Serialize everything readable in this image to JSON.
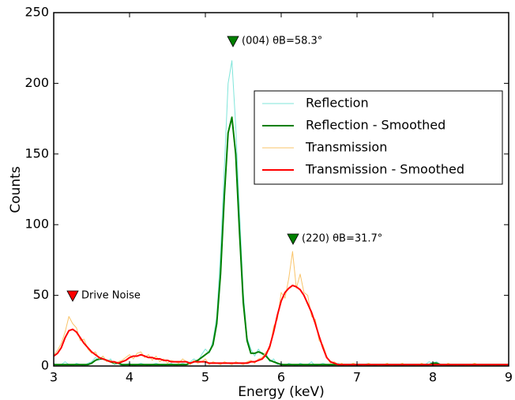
{
  "chart_data": {
    "type": "line",
    "x_label": "Energy (keV)",
    "y_label": "Counts",
    "x": [
      3.0,
      3.05,
      3.1,
      3.15,
      3.2,
      3.25,
      3.3,
      3.35,
      3.4,
      3.45,
      3.5,
      3.55,
      3.6,
      3.65,
      3.7,
      3.75,
      3.8,
      3.85,
      3.9,
      3.95,
      4.0,
      4.05,
      4.1,
      4.15,
      4.2,
      4.25,
      4.3,
      4.35,
      4.4,
      4.45,
      4.5,
      4.55,
      4.6,
      4.65,
      4.7,
      4.75,
      4.8,
      4.85,
      4.9,
      4.95,
      5.0,
      5.05,
      5.1,
      5.15,
      5.2,
      5.25,
      5.3,
      5.35,
      5.4,
      5.45,
      5.5,
      5.55,
      5.6,
      5.65,
      5.7,
      5.75,
      5.8,
      5.85,
      5.9,
      5.95,
      6.0,
      6.05,
      6.1,
      6.15,
      6.2,
      6.25,
      6.3,
      6.35,
      6.4,
      6.45,
      6.5,
      6.55,
      6.6,
      6.65,
      6.7,
      6.75,
      6.8,
      6.85,
      6.9,
      6.95,
      7.0,
      7.05,
      7.1,
      7.15,
      7.2,
      7.25,
      7.3,
      7.35,
      7.4,
      7.45,
      7.5,
      7.55,
      7.6,
      7.65,
      7.7,
      7.75,
      7.8,
      7.85,
      7.9,
      7.95,
      8.0,
      8.05,
      8.1,
      8.15,
      8.2,
      8.25,
      8.3,
      8.35,
      8.4,
      8.45,
      8.5,
      8.55,
      8.6,
      8.65,
      8.7,
      8.75,
      8.8,
      8.85,
      8.9,
      8.95,
      9.0
    ],
    "series": [
      {
        "name": "Reflection",
        "color": "#7fe5da",
        "width": 1,
        "values": [
          2,
          0,
          1,
          3,
          1,
          0,
          2,
          1,
          0,
          2,
          3,
          6,
          4,
          7,
          3,
          5,
          1,
          2,
          0,
          1,
          2,
          0,
          1,
          2,
          1,
          0,
          1,
          2,
          1,
          0,
          1,
          2,
          0,
          1,
          2,
          1,
          3,
          5,
          3,
          8,
          12,
          9,
          18,
          35,
          80,
          140,
          200,
          216,
          170,
          110,
          52,
          20,
          12,
          7,
          12,
          8,
          9,
          3,
          5,
          1,
          2,
          0,
          2,
          1,
          0,
          2,
          1,
          1,
          3,
          0,
          1,
          2,
          1,
          0,
          1,
          2,
          1,
          0,
          1,
          2,
          1,
          0,
          1,
          2,
          1,
          0,
          1,
          1,
          2,
          0,
          1,
          1,
          2,
          0,
          1,
          1,
          0,
          2,
          1,
          3,
          2,
          3,
          1,
          0,
          2,
          1,
          0,
          1,
          1,
          0,
          1,
          2,
          1,
          0,
          1,
          1,
          0,
          1,
          1,
          0,
          1
        ]
      },
      {
        "name": "Reflection - Smoothed",
        "color": "#008000",
        "width": 2,
        "values": [
          1,
          1,
          1,
          1,
          1,
          1,
          1,
          1,
          1,
          1,
          2,
          4,
          5,
          5,
          4,
          3,
          2,
          2,
          1,
          1,
          1,
          1,
          1,
          1,
          1,
          1,
          1,
          1,
          1,
          1,
          1,
          1,
          1,
          1,
          1,
          1,
          2,
          3,
          4,
          6,
          8,
          10,
          15,
          30,
          65,
          120,
          165,
          176,
          150,
          95,
          45,
          18,
          9,
          9,
          10,
          9,
          7,
          4,
          3,
          2,
          1,
          1,
          1,
          1,
          1,
          1,
          1,
          1,
          1,
          1,
          1,
          1,
          1,
          1,
          1,
          1,
          1,
          1,
          1,
          1,
          1,
          1,
          1,
          1,
          1,
          1,
          1,
          1,
          1,
          1,
          1,
          1,
          1,
          1,
          1,
          1,
          1,
          1,
          1,
          1,
          2,
          2,
          1,
          1,
          1,
          1,
          1,
          1,
          1,
          1,
          1,
          1,
          1,
          1,
          1,
          1,
          1,
          1,
          1,
          1,
          1
        ]
      },
      {
        "name": "Transmission",
        "color": "#f9c46a",
        "width": 1,
        "values": [
          8,
          11,
          16,
          24,
          35,
          30,
          27,
          18,
          19,
          12,
          9,
          10,
          5,
          7,
          3,
          4,
          2,
          3,
          4,
          6,
          8,
          5,
          9,
          10,
          6,
          8,
          4,
          7,
          3,
          5,
          2,
          4,
          3,
          2,
          5,
          3,
          1,
          4,
          2,
          3,
          5,
          1,
          3,
          2,
          1,
          3,
          2,
          1,
          3,
          2,
          1,
          3,
          4,
          2,
          5,
          6,
          10,
          12,
          28,
          33,
          52,
          48,
          62,
          81,
          55,
          65,
          52,
          50,
          35,
          33,
          18,
          15,
          7,
          2,
          3,
          1,
          2,
          0,
          1,
          2,
          1,
          1,
          0,
          2,
          1,
          1,
          0,
          1,
          2,
          0,
          1,
          1,
          2,
          0,
          1,
          1,
          0,
          2,
          1,
          1,
          0,
          1,
          1,
          0,
          2,
          1,
          0,
          1,
          1,
          0,
          1,
          2,
          1,
          0,
          1,
          1,
          0,
          1,
          1,
          0,
          1
        ]
      },
      {
        "name": "Transmission - Smoothed",
        "color": "#ff0000",
        "width": 2,
        "values": [
          7,
          9,
          13,
          20,
          25,
          26,
          24,
          20,
          16,
          13,
          10,
          8,
          6,
          5,
          4,
          3,
          3,
          2,
          3,
          4,
          6,
          7,
          7,
          8,
          7,
          6,
          6,
          5,
          5,
          4,
          4,
          3,
          3,
          3,
          3,
          3,
          2,
          3,
          3,
          3,
          3,
          2,
          2,
          2,
          2,
          2,
          2,
          2,
          2,
          2,
          2,
          2,
          3,
          3,
          4,
          5,
          8,
          14,
          24,
          36,
          46,
          52,
          55,
          57,
          56,
          54,
          50,
          44,
          38,
          30,
          21,
          13,
          6,
          3,
          2,
          1,
          1,
          1,
          1,
          1,
          1,
          1,
          1,
          1,
          1,
          1,
          1,
          1,
          1,
          1,
          1,
          1,
          1,
          1,
          1,
          1,
          1,
          1,
          1,
          1,
          1,
          1,
          1,
          1,
          1,
          1,
          1,
          1,
          1,
          1,
          1,
          1,
          1,
          1,
          1,
          1,
          1,
          1,
          1,
          1,
          1
        ]
      }
    ],
    "xlim": [
      3,
      9
    ],
    "ylim": [
      0,
      250
    ],
    "xticks": [
      3,
      4,
      5,
      6,
      7,
      8,
      9
    ],
    "yticks": [
      0,
      50,
      100,
      150,
      200,
      250
    ],
    "legend": "upper right",
    "annotations": [
      {
        "text": "(004) θB=58.3°",
        "color": "#008000"
      },
      {
        "text": "(220) θB=31.7°",
        "color": "#008000"
      },
      {
        "text": "Drive Noise",
        "color": "#ff0000"
      }
    ]
  }
}
